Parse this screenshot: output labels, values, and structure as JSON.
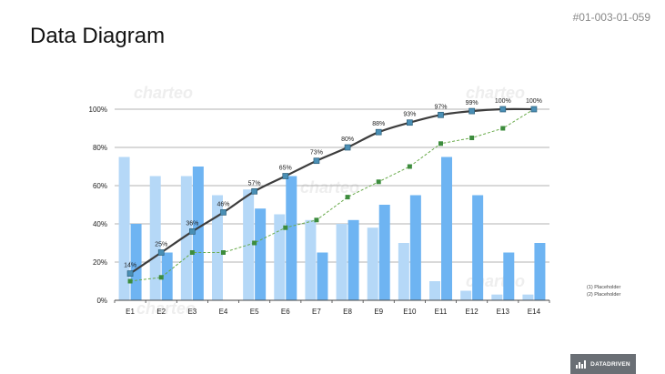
{
  "page": {
    "title": "Data Diagram",
    "slide_id": "#01-003-01-059",
    "watermark": "charteo",
    "brand": "DATADRIVEN"
  },
  "colors": {
    "bar_light": "#b5d8f7",
    "bar_dark": "#6eb4f2",
    "line_main": "#3d3d3d",
    "marker_main": "#4a8fb5",
    "line_secondary": "#6aab4c",
    "marker_secondary": "#3d8c3d",
    "grid": "#9a9a9a"
  },
  "chart_data": {
    "type": "bar",
    "categories": [
      "E1",
      "E2",
      "E3",
      "E4",
      "E5",
      "E6",
      "E7",
      "E8",
      "E9",
      "E10",
      "E11",
      "E12",
      "E13",
      "E14"
    ],
    "series": [
      {
        "name": "(1) Placeholder",
        "kind": "bar",
        "values": [
          75,
          65,
          65,
          55,
          58,
          45,
          42,
          40,
          38,
          30,
          10,
          5,
          3,
          3
        ]
      },
      {
        "name": "(2) Placeholder",
        "kind": "bar",
        "values": [
          40,
          25,
          70,
          0,
          48,
          65,
          25,
          42,
          50,
          55,
          75,
          55,
          25,
          30
        ]
      },
      {
        "kind": "line",
        "values": [
          14,
          25,
          36,
          46,
          57,
          65,
          73,
          80,
          88,
          93,
          97,
          99,
          100,
          100
        ],
        "labels": [
          "14%",
          "25%",
          "36%",
          "46%",
          "57%",
          "65%",
          "73%",
          "80%",
          "88%",
          "93%",
          "97%",
          "99%",
          "100%",
          "100%"
        ]
      },
      {
        "kind": "line-dashed",
        "values": [
          10,
          12,
          25,
          25,
          30,
          38,
          42,
          54,
          62,
          70,
          82,
          85,
          90,
          100
        ]
      }
    ],
    "ylim": [
      0,
      100
    ],
    "yticks": [
      "0%",
      "20%",
      "40%",
      "60%",
      "80%",
      "100%"
    ],
    "grid": true,
    "legend": "right",
    "xlabel": "",
    "ylabel": ""
  }
}
